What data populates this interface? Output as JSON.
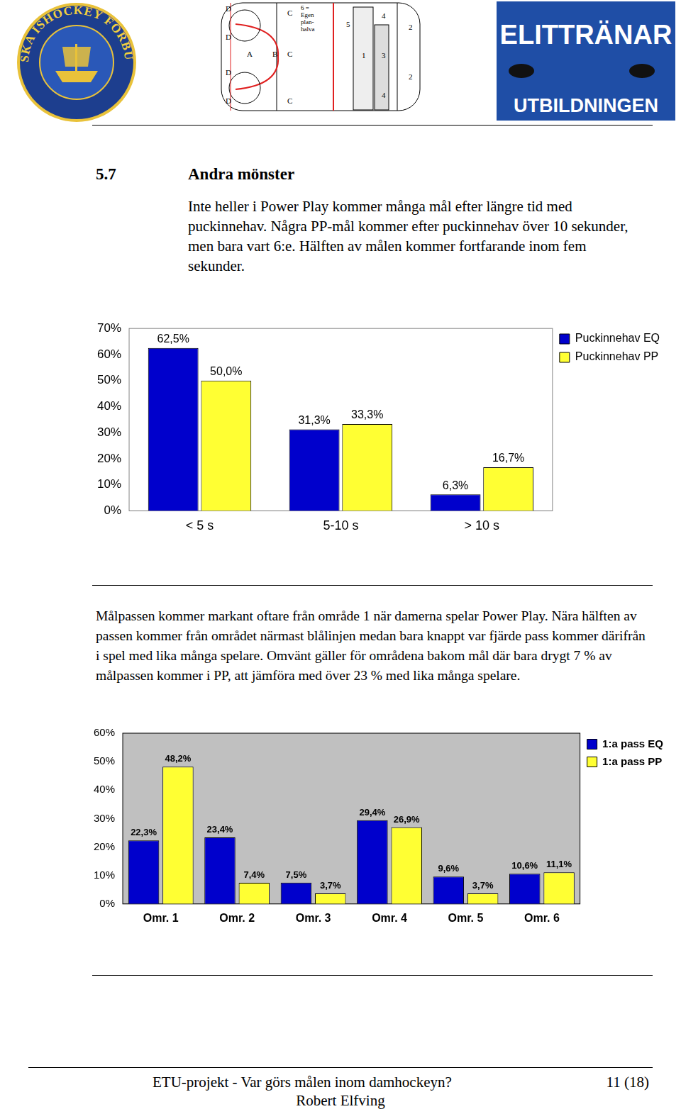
{
  "header": {
    "left_logo": "SVENSKA ISHOCKEY FÖRBUNDET",
    "rink_labels": [
      "D",
      "C",
      "6 =\nEgen\nplan-\nhalva",
      "5",
      "4",
      "2",
      "D",
      "A",
      "B",
      "C",
      "1",
      "3",
      "D",
      "2",
      "D",
      "C",
      "4"
    ],
    "right_logo": [
      "ELITTRÄNAR",
      "UTBILDNINGEN"
    ]
  },
  "section": {
    "number": "5.7",
    "title": "Andra mönster"
  },
  "paragraphs": [
    "Inte heller i Power Play kommer många mål efter längre tid med puckinnehav. Några PP-mål kommer efter puckinnehav över 10 sekunder, men bara vart 6:e. Hälften av målen kommer fortfarande inom fem sekunder.",
    "Målpassen kommer markant oftare från område 1 när damerna spelar Power Play. Nära hälften av passen kommer från området närmast blålinjen medan bara knappt var fjärde pass kommer därifrån i spel med lika många spelare. Omvänt gäller för områdena bakom mål där bara drygt 7 % av målpassen kommer i PP, att jämföra med över 23 % med lika många spelare."
  ],
  "chart_data": [
    {
      "type": "bar",
      "categories": [
        "< 5 s",
        "5-10 s",
        "> 10 s"
      ],
      "series": [
        {
          "name": "Puckinnehav EQ",
          "color": "#0000cc",
          "values": [
            62.5,
            31.3,
            6.3
          ],
          "value_labels": [
            "62,5%",
            "31,3%",
            "6,3%"
          ]
        },
        {
          "name": "Puckinnehav PP",
          "color": "#ffff33",
          "values": [
            50.0,
            33.3,
            16.7
          ],
          "value_labels": [
            "50,0%",
            "33,3%",
            "16,7%"
          ]
        }
      ],
      "ylim": [
        0,
        70
      ],
      "yticks": [
        {
          "value": 0,
          "label": "0%"
        },
        {
          "value": 10,
          "label": "10%"
        },
        {
          "value": 20,
          "label": "20%"
        },
        {
          "value": 30,
          "label": "30%"
        },
        {
          "value": 40,
          "label": "40%"
        },
        {
          "value": 50,
          "label": "50%"
        },
        {
          "value": 60,
          "label": "60%"
        },
        {
          "value": 70,
          "label": "70%"
        }
      ],
      "grid": false,
      "legend": "upper right",
      "data_labels": true
    },
    {
      "type": "bar",
      "categories": [
        "Omr. 1",
        "Omr. 2",
        "Omr. 3",
        "Omr. 4",
        "Omr. 5",
        "Omr. 6"
      ],
      "series": [
        {
          "name": "1:a pass EQ",
          "color": "#0000cc",
          "values": [
            22.3,
            23.4,
            7.5,
            29.4,
            9.6,
            10.6
          ],
          "value_labels": [
            "22,3%",
            "23,4%",
            "7,5%",
            "29,4%",
            "9,6%",
            "10,6%"
          ]
        },
        {
          "name": "1:a pass PP",
          "color": "#ffff33",
          "values": [
            48.2,
            7.4,
            3.7,
            26.9,
            3.7,
            11.1
          ],
          "value_labels": [
            "48,2%",
            "7,4%",
            "3,7%",
            "26,9%",
            "3,7%",
            "11,1%"
          ]
        }
      ],
      "ylim": [
        0,
        60
      ],
      "yticks": [
        {
          "value": 0,
          "label": "0%"
        },
        {
          "value": 10,
          "label": "10%"
        },
        {
          "value": 20,
          "label": "20%"
        },
        {
          "value": 30,
          "label": "30%"
        },
        {
          "value": 40,
          "label": "40%"
        },
        {
          "value": 50,
          "label": "50%"
        },
        {
          "value": 60,
          "label": "60%"
        }
      ],
      "grid": false,
      "legend": "upper right",
      "data_labels": true
    }
  ],
  "footer": {
    "title": "ETU-projekt - Var görs målen inom damhockeyn?",
    "page": "11 (18)",
    "author": "Robert Elfving"
  }
}
